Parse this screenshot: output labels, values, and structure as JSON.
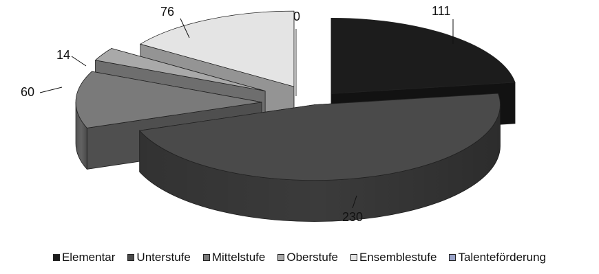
{
  "chart_data": {
    "type": "pie",
    "title": "",
    "categories": [
      "Elementar",
      "Unterstufe",
      "Mittelstufe",
      "Oberstufe",
      "Ensemblestufe",
      "Talenteförderung"
    ],
    "values": [
      111,
      230,
      60,
      14,
      76,
      0
    ],
    "data_labels": [
      "111",
      "230",
      "60",
      "14",
      "76",
      "0"
    ],
    "exploded": true,
    "style": "3d",
    "legend_position": "bottom",
    "colors": [
      "#1c1c1c",
      "#4a4a4a",
      "#7a7a7a",
      "#a9a9a9",
      "#e4e4e4",
      "#9aa3c8"
    ]
  }
}
